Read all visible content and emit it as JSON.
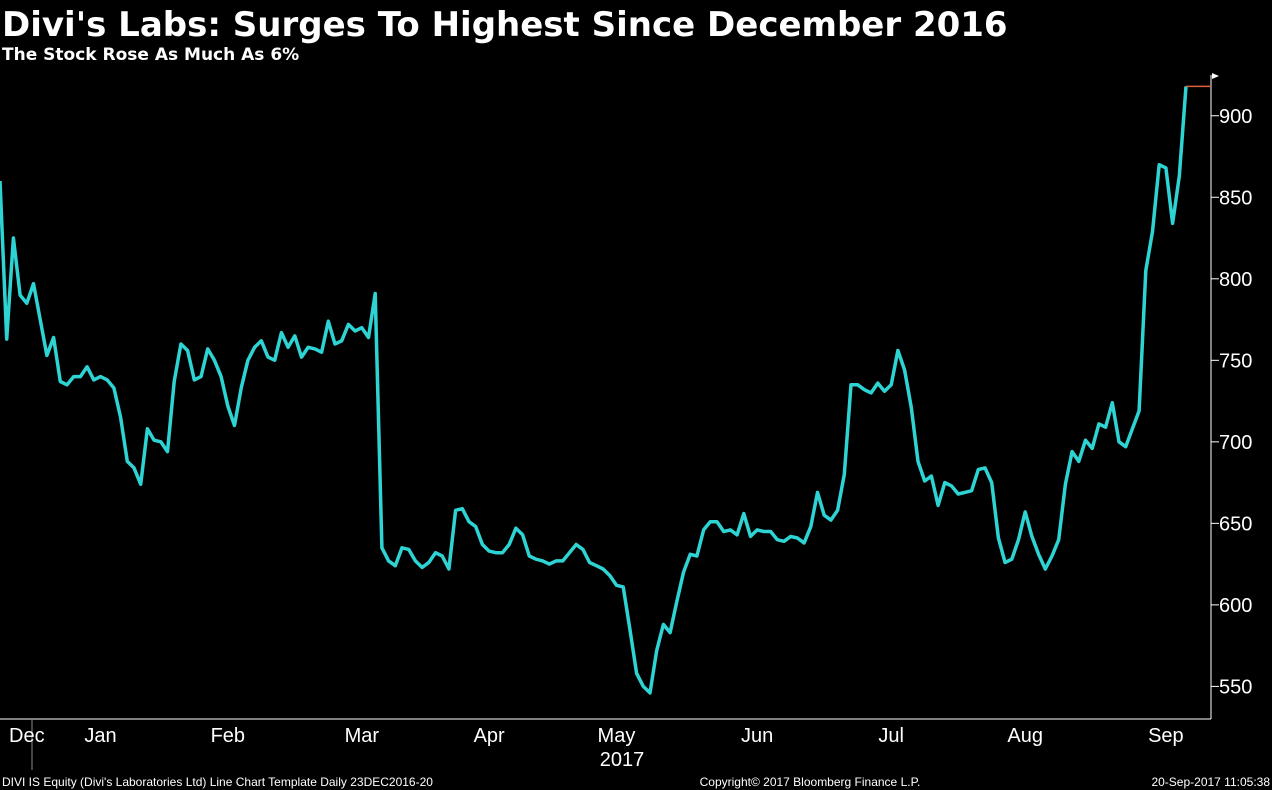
{
  "chart_data": {
    "type": "line",
    "title": "Divi's Labs: Surges To Highest Since December 2016",
    "subtitle": "The Stock Rose As Much As 6%",
    "x_year_label": "2017",
    "footer_left": "DIVI IS Equity (Divi's Laboratories Ltd) Line Chart Template  Daily 23DEC2016-20",
    "footer_center": "Copyright© 2017 Bloomberg Finance L.P.",
    "footer_right": "20-Sep-2017 11:05:38",
    "color": "#2ed3d3",
    "last_price_color": "#e06040",
    "ylim": [
      530,
      925
    ],
    "yticks": [
      550,
      600,
      650,
      700,
      750,
      800,
      850,
      900
    ],
    "categories": [
      null,
      null,
      null,
      null,
      "Dec",
      null,
      null,
      null,
      null,
      null,
      null,
      null,
      null,
      null,
      null,
      "Jan",
      null,
      null,
      null,
      null,
      null,
      null,
      null,
      null,
      null,
      null,
      null,
      null,
      null,
      null,
      null,
      null,
      null,
      null,
      "Feb",
      null,
      null,
      null,
      null,
      null,
      null,
      null,
      null,
      null,
      null,
      null,
      null,
      null,
      null,
      null,
      null,
      null,
      null,
      null,
      "Mar",
      null,
      null,
      null,
      null,
      null,
      null,
      null,
      null,
      null,
      null,
      null,
      null,
      null,
      null,
      null,
      null,
      null,
      null,
      "Apr",
      null,
      null,
      null,
      null,
      null,
      null,
      null,
      null,
      null,
      null,
      null,
      null,
      null,
      null,
      null,
      null,
      null,
      null,
      "May",
      null,
      null,
      null,
      null,
      null,
      null,
      null,
      null,
      null,
      null,
      null,
      null,
      null,
      null,
      null,
      null,
      null,
      null,
      null,
      null,
      "Jun",
      null,
      null,
      null,
      null,
      null,
      null,
      null,
      null,
      null,
      null,
      null,
      null,
      null,
      null,
      null,
      null,
      null,
      null,
      null,
      "Jul",
      null,
      null,
      null,
      null,
      null,
      null,
      null,
      null,
      null,
      null,
      null,
      null,
      null,
      null,
      null,
      null,
      null,
      null,
      null,
      "Aug",
      null,
      null,
      null,
      null,
      null,
      null,
      null,
      null,
      null,
      null,
      null,
      null,
      null,
      null,
      null,
      null,
      null,
      null,
      null,
      null,
      "Sep",
      null,
      null,
      null
    ],
    "values": [
      860,
      763,
      825,
      790,
      785,
      797,
      775,
      753,
      764,
      737,
      735,
      740,
      740,
      746,
      738,
      740,
      738,
      733,
      715,
      688,
      684,
      674,
      708,
      701,
      700,
      694,
      737,
      760,
      756,
      738,
      740,
      757,
      750,
      740,
      722,
      710,
      733,
      750,
      758,
      762,
      752,
      750,
      767,
      758,
      765,
      752,
      758,
      757,
      755,
      774,
      760,
      762,
      772,
      768,
      770,
      764,
      791,
      635,
      627,
      624,
      635,
      634,
      627,
      623,
      626,
      632,
      630,
      622,
      658,
      659,
      651,
      648,
      637,
      633,
      632,
      632,
      637,
      647,
      643,
      630,
      628,
      627,
      625,
      627,
      627,
      632,
      637,
      634,
      626,
      624,
      622,
      618,
      612,
      611,
      585,
      558,
      550,
      546,
      572,
      588,
      583,
      602,
      620,
      631,
      630,
      646,
      651,
      651,
      645,
      646,
      643,
      656,
      642,
      646,
      645,
      645,
      640,
      639,
      642,
      641,
      638,
      648,
      669,
      655,
      652,
      658,
      680,
      735,
      735,
      732,
      730,
      736,
      731,
      735,
      756,
      744,
      721,
      688,
      676,
      679,
      661,
      675,
      673,
      668,
      669,
      670,
      683,
      684,
      675,
      641,
      626,
      628,
      640,
      657,
      642,
      631,
      622,
      630,
      640,
      674,
      694,
      688,
      701,
      696,
      711,
      709,
      724,
      700,
      697,
      708,
      719,
      805,
      829,
      870,
      868,
      834,
      863,
      918
    ]
  }
}
